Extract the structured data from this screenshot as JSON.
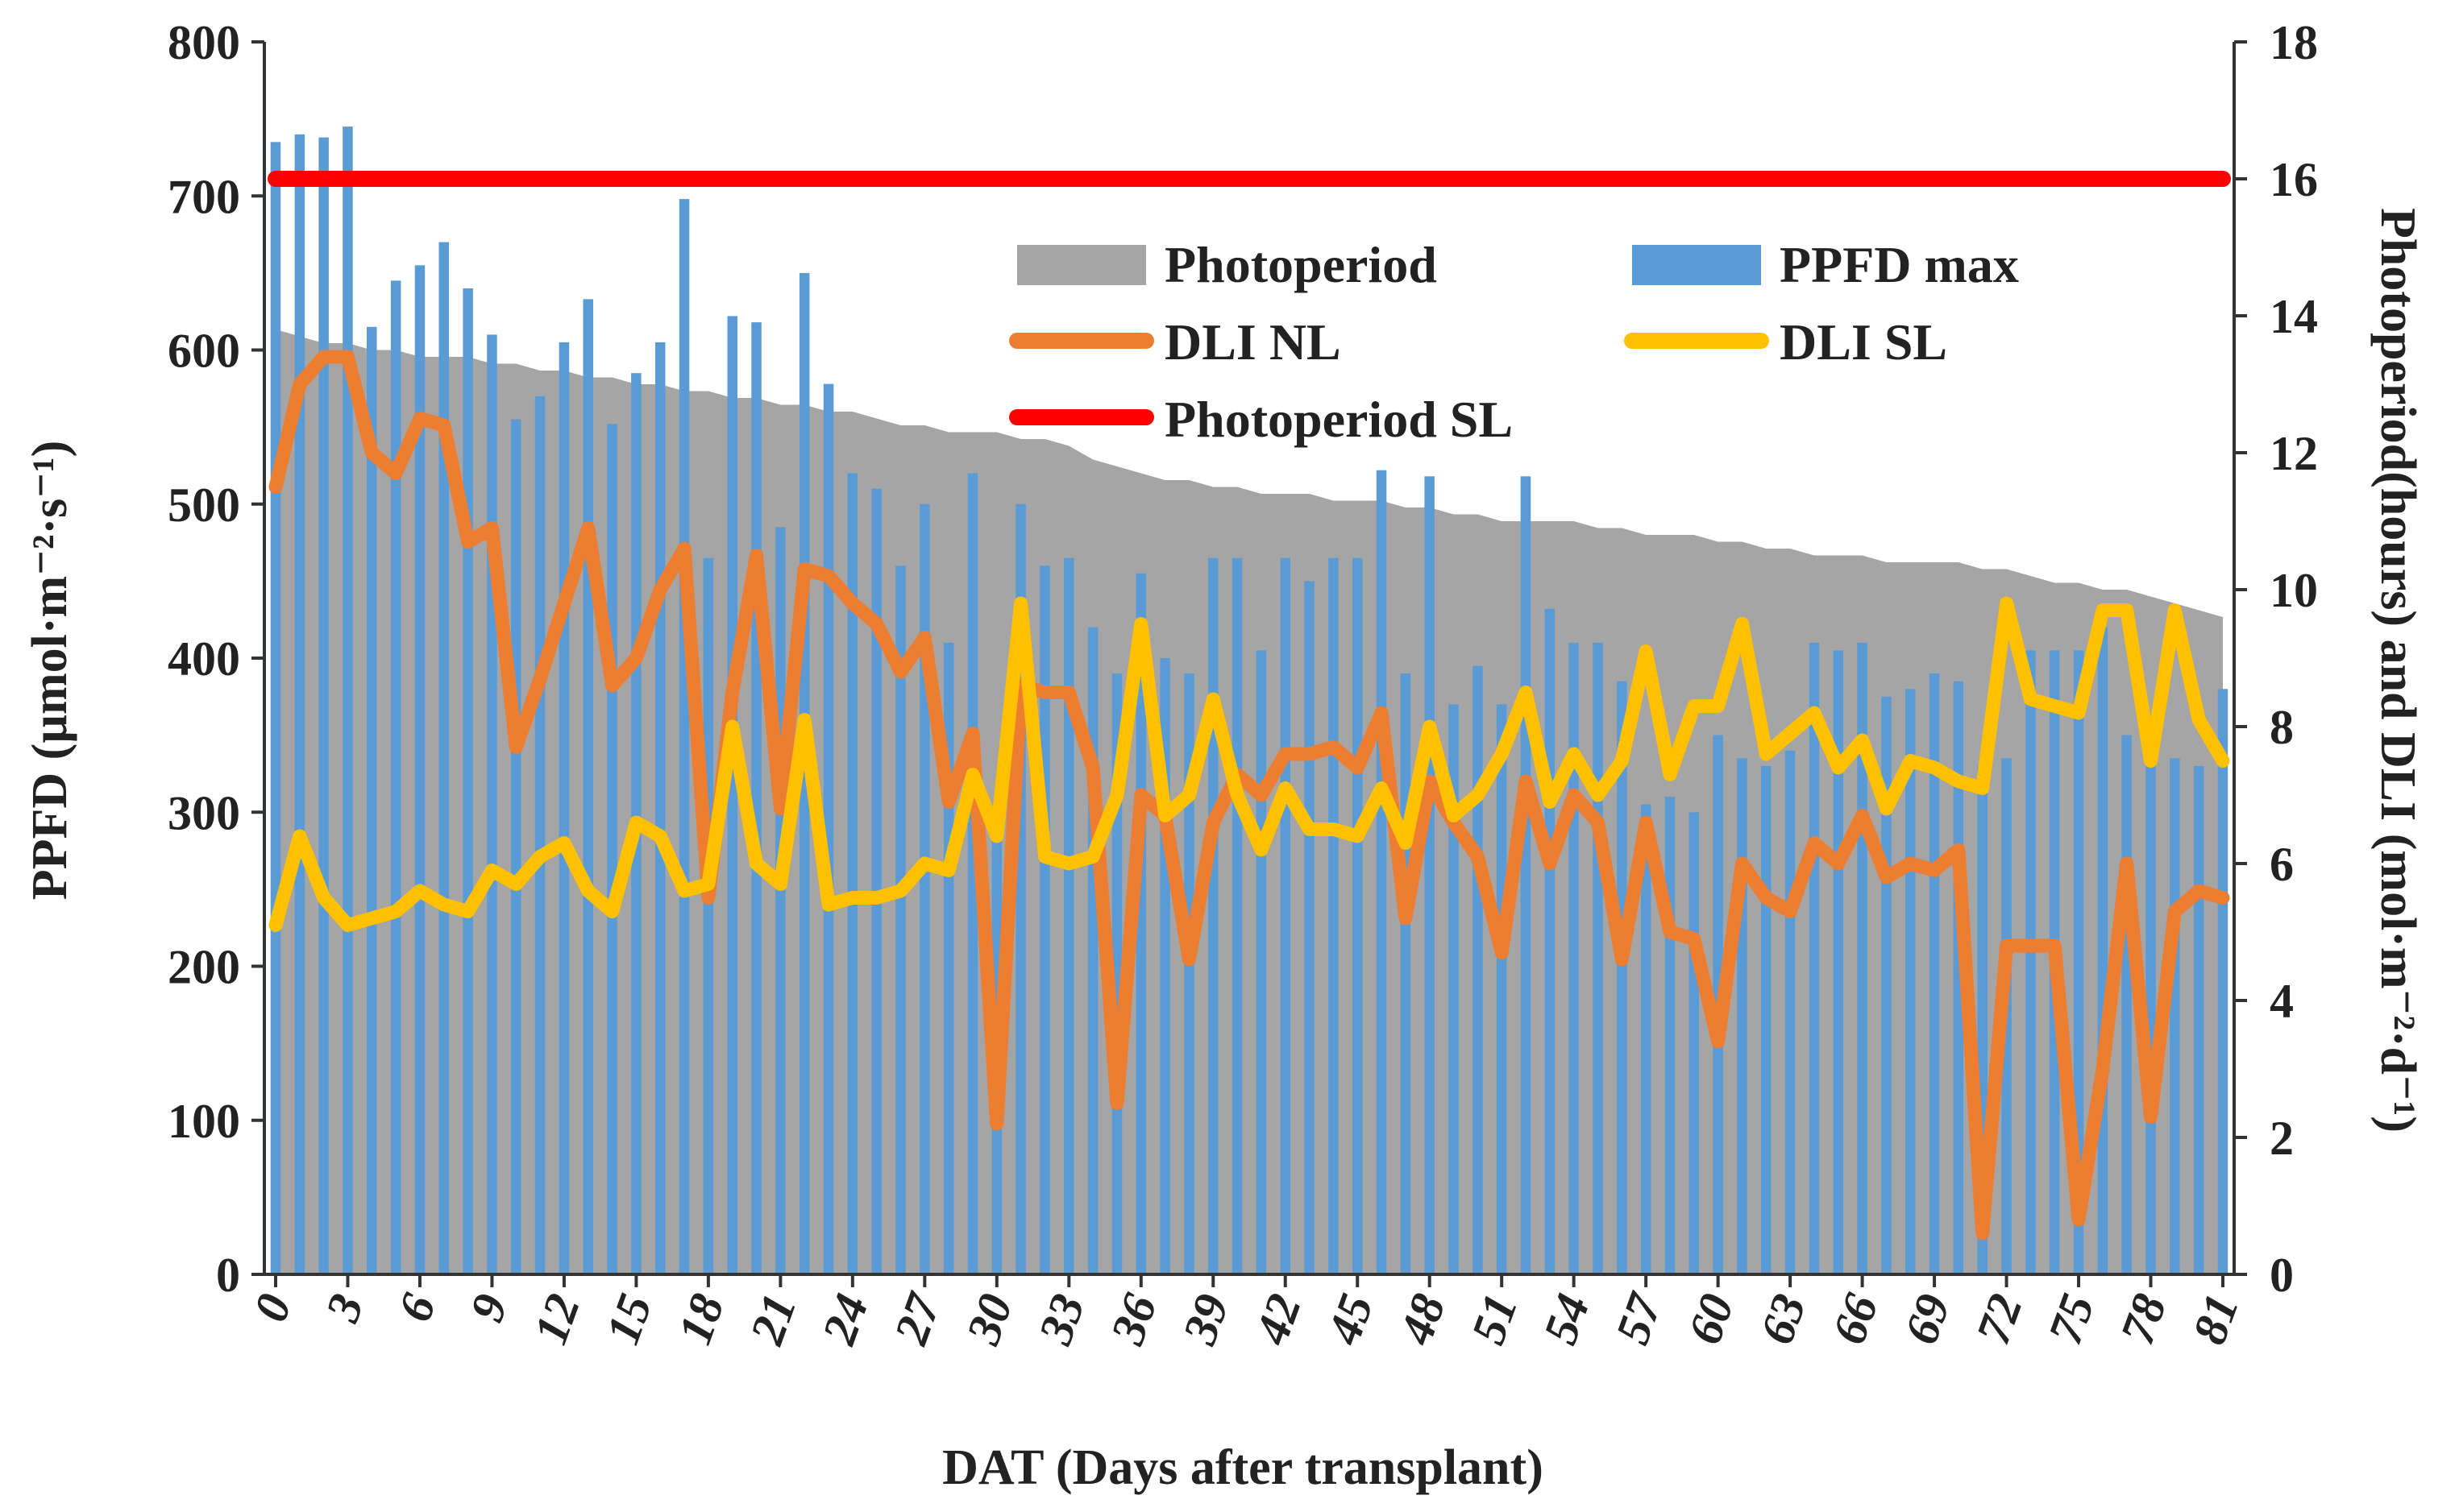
{
  "chart_data": {
    "type": "bar",
    "xlabel": "DAT (Days after transplant)",
    "ylabel_left": "PPFD (µmol·m⁻²·s⁻¹)",
    "ylabel_right": "Photoperiod(hours) and DLI (mol·m⁻²·d⁻¹)",
    "ylim_left": [
      0,
      800
    ],
    "ylim_right": [
      0,
      18
    ],
    "xlim": [
      0,
      81
    ],
    "yticks_left": [
      "0",
      "100",
      "200",
      "300",
      "400",
      "500",
      "600",
      "700",
      "800"
    ],
    "yticks_right": [
      "0",
      "2",
      "4",
      "6",
      "8",
      "10",
      "12",
      "14",
      "16",
      "18"
    ],
    "xticks": [
      "0",
      "3",
      "6",
      "9",
      "12",
      "15",
      "18",
      "21",
      "24",
      "27",
      "30",
      "33",
      "36",
      "39",
      "42",
      "45",
      "48",
      "51",
      "54",
      "57",
      "60",
      "63",
      "66",
      "69",
      "72",
      "75",
      "78",
      "81"
    ],
    "grid": false,
    "legend_position": "top-center",
    "colors": {
      "photoperiod": "#a5a5a5",
      "ppfd_max": "#5b9bd5",
      "dli_nl": "#ed7d31",
      "dli_sl": "#ffc000",
      "photoperiod_sl": "#ff0000",
      "axis": "#333333"
    },
    "series": [
      {
        "name": "Photoperiod",
        "type": "area",
        "axis": "right",
        "values": [
          13.8,
          13.7,
          13.6,
          13.6,
          13.5,
          13.5,
          13.4,
          13.4,
          13.4,
          13.3,
          13.3,
          13.2,
          13.2,
          13.1,
          13.1,
          13.0,
          13.0,
          12.9,
          12.9,
          12.8,
          12.8,
          12.7,
          12.7,
          12.6,
          12.6,
          12.5,
          12.4,
          12.4,
          12.3,
          12.3,
          12.3,
          12.2,
          12.2,
          12.1,
          11.9,
          11.8,
          11.7,
          11.6,
          11.6,
          11.5,
          11.5,
          11.4,
          11.4,
          11.4,
          11.3,
          11.3,
          11.3,
          11.2,
          11.2,
          11.1,
          11.1,
          11.0,
          11.0,
          11.0,
          11.0,
          10.9,
          10.9,
          10.8,
          10.8,
          10.8,
          10.7,
          10.7,
          10.6,
          10.6,
          10.5,
          10.5,
          10.5,
          10.4,
          10.4,
          10.4,
          10.4,
          10.3,
          10.3,
          10.2,
          10.1,
          10.1,
          10.0,
          10.0,
          9.9,
          9.8,
          9.7,
          9.6
        ]
      },
      {
        "name": "PPFD max",
        "type": "bar",
        "axis": "left",
        "values": [
          735,
          740,
          738,
          745,
          615,
          645,
          655,
          670,
          640,
          610,
          555,
          570,
          605,
          633,
          552,
          585,
          605,
          698,
          465,
          622,
          618,
          485,
          650,
          578,
          520,
          510,
          460,
          500,
          410,
          520,
          300,
          500,
          460,
          465,
          420,
          390,
          455,
          400,
          390,
          465,
          465,
          405,
          465,
          450,
          465,
          465,
          522,
          390,
          518,
          370,
          395,
          370,
          518,
          432,
          410,
          410,
          385,
          305,
          310,
          300,
          350,
          335,
          330,
          340,
          410,
          405,
          410,
          375,
          380,
          390,
          385,
          330,
          335,
          405,
          405,
          405,
          420,
          350,
          340,
          335,
          330,
          380
        ]
      },
      {
        "name": "DLI NL",
        "type": "line",
        "axis": "right",
        "values": [
          11.5,
          13.0,
          13.4,
          13.4,
          12.0,
          11.7,
          12.5,
          12.4,
          10.7,
          10.9,
          7.7,
          8.7,
          9.8,
          10.9,
          8.6,
          9.0,
          10.0,
          10.6,
          5.5,
          8.5,
          10.5,
          6.8,
          10.3,
          10.2,
          9.8,
          9.5,
          8.8,
          9.3,
          6.9,
          7.9,
          2.2,
          8.6,
          8.5,
          8.5,
          7.4,
          2.5,
          7.0,
          6.7,
          4.6,
          6.6,
          7.3,
          7.0,
          7.6,
          7.6,
          7.7,
          7.4,
          8.2,
          5.2,
          7.2,
          6.6,
          6.1,
          4.7,
          7.2,
          6.0,
          7.0,
          6.6,
          4.6,
          6.6,
          5.0,
          4.9,
          3.4,
          6.0,
          5.5,
          5.3,
          6.3,
          6.0,
          6.7,
          5.8,
          6.0,
          5.9,
          6.2,
          0.6,
          4.8,
          4.8,
          4.8,
          0.8,
          3.0,
          6.0,
          2.3,
          5.3,
          5.6,
          5.5
        ]
      },
      {
        "name": "DLI SL",
        "type": "line",
        "axis": "right",
        "values": [
          5.1,
          6.4,
          5.5,
          5.1,
          5.2,
          5.3,
          5.6,
          5.4,
          5.3,
          5.9,
          5.7,
          6.1,
          6.3,
          5.6,
          5.3,
          6.6,
          6.4,
          5.6,
          5.7,
          8.0,
          6.0,
          5.7,
          8.1,
          5.4,
          5.5,
          5.5,
          5.6,
          6.0,
          5.9,
          7.3,
          6.4,
          9.8,
          6.1,
          6.0,
          6.1,
          7.0,
          9.5,
          6.7,
          7.0,
          8.4,
          7.0,
          6.2,
          7.1,
          6.5,
          6.5,
          6.4,
          7.1,
          6.3,
          8.0,
          6.7,
          7.0,
          7.6,
          8.5,
          6.9,
          7.6,
          7.0,
          7.5,
          9.1,
          7.3,
          8.3,
          8.3,
          9.5,
          7.6,
          7.9,
          8.2,
          7.4,
          7.8,
          6.8,
          7.5,
          7.4,
          7.2,
          7.1,
          9.8,
          8.4,
          8.3,
          8.2,
          9.7,
          9.7,
          7.5,
          9.7,
          8.1,
          7.5
        ]
      },
      {
        "name": "Photoperiod SL",
        "type": "line",
        "axis": "right",
        "values": [
          16,
          16
        ]
      }
    ]
  }
}
